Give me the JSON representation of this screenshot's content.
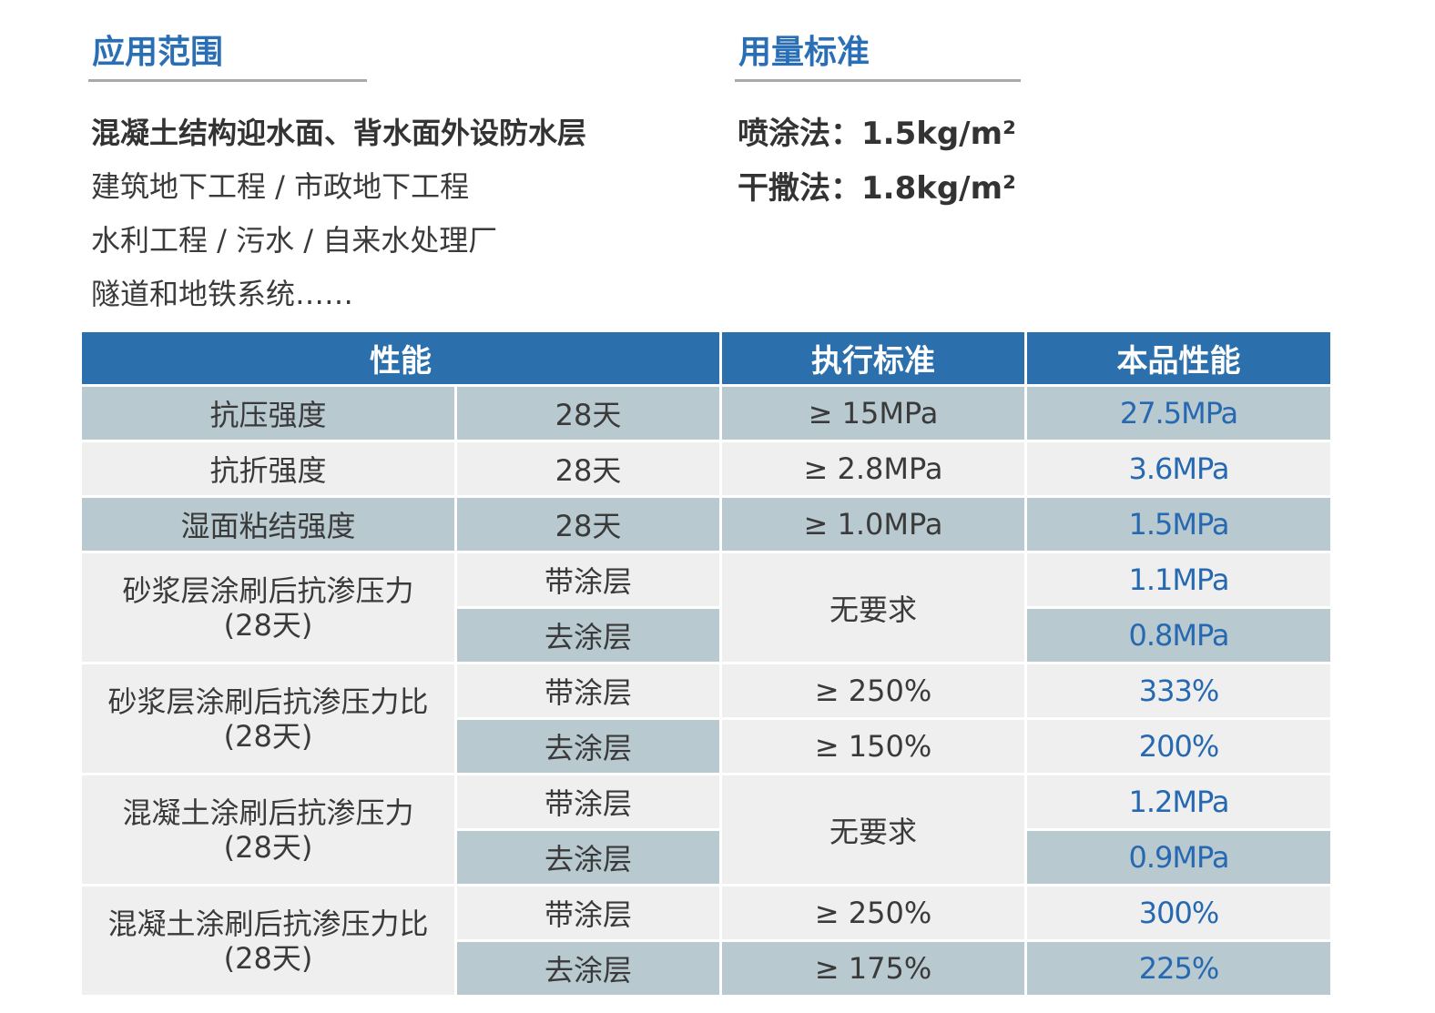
{
  "application": {
    "title": "应用范围",
    "lines": [
      "混凝土结构迎水面、背水面外设防水层",
      "建筑地下工程 / 市政地下工程",
      "水利工程 / 污水 / 自来水处理厂",
      "隧道和地铁系统……"
    ]
  },
  "usage": {
    "title": "用量标准",
    "lines": [
      "喷涂法：1.5kg/m²",
      "干撒法：1.8kg/m²"
    ]
  },
  "table": {
    "headers": [
      "性能",
      "执行标准",
      "本品性能"
    ],
    "rows": [
      {
        "prop": "抗压强度",
        "cond": "28天",
        "std": "≥ 15MPa",
        "val": "27.5MPa"
      },
      {
        "prop": "抗折强度",
        "cond": "28天",
        "std": "≥ 2.8MPa",
        "val": "3.6MPa"
      },
      {
        "prop": "湿面粘结强度",
        "cond": "28天",
        "std": "≥ 1.0MPa",
        "val": "1.5MPa"
      }
    ],
    "groups": [
      {
        "prop": "砂浆层涂刷后抗渗压力",
        "prop2": "(28天)",
        "std": "无要求",
        "rows": [
          {
            "cond": "带涂层",
            "val": "1.1MPa"
          },
          {
            "cond": "去涂层",
            "val": "0.8MPa"
          }
        ]
      },
      {
        "prop": "砂浆层涂刷后抗渗压力比",
        "prop2": "(28天)",
        "rows": [
          {
            "cond": "带涂层",
            "std": "≥ 250%",
            "val": "333%"
          },
          {
            "cond": "去涂层",
            "std": "≥ 150%",
            "val": "200%"
          }
        ]
      },
      {
        "prop": "混凝土涂刷后抗渗压力",
        "prop2": "(28天)",
        "std": "无要求",
        "rows": [
          {
            "cond": "带涂层",
            "val": "1.2MPa"
          },
          {
            "cond": "去涂层",
            "val": "0.9MPa"
          }
        ]
      },
      {
        "prop": "混凝土涂刷后抗渗压力比",
        "prop2": "(28天)",
        "rows": [
          {
            "cond": "带涂层",
            "std": "≥ 250%",
            "val": "300%"
          },
          {
            "cond": "去涂层",
            "std": "≥ 175%",
            "val": "225%"
          }
        ]
      }
    ]
  }
}
